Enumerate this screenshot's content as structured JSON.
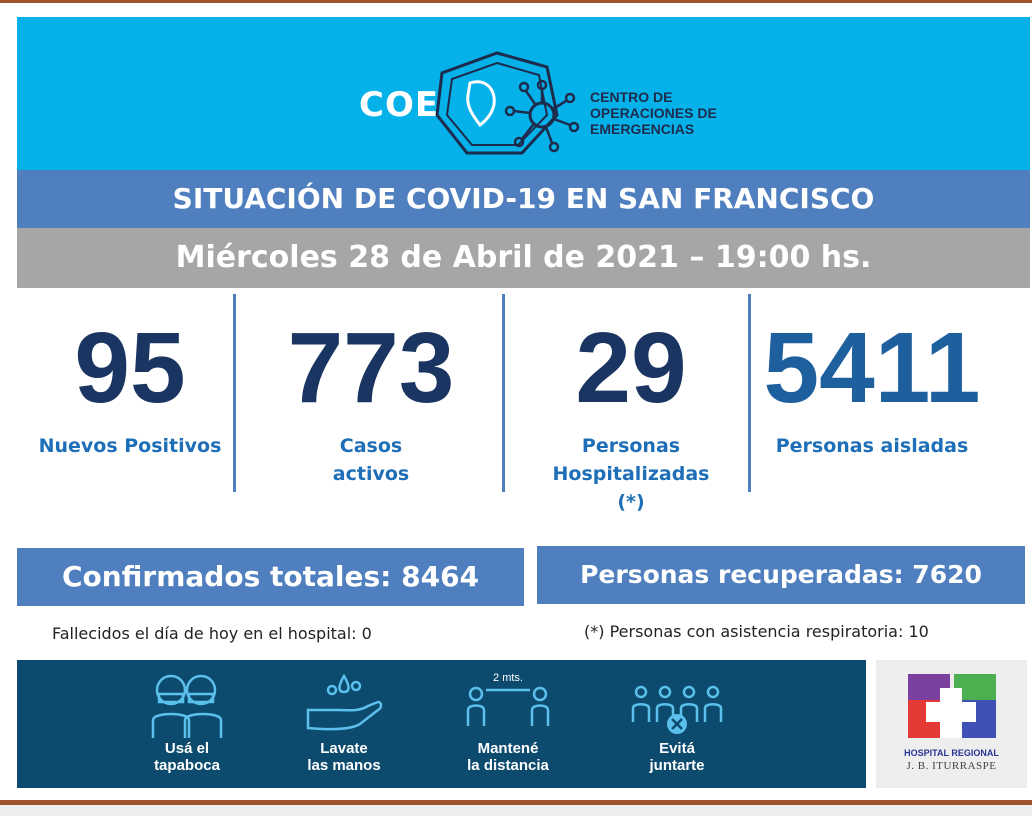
{
  "header": {
    "logo_abbrev": "COE",
    "org_line1": "CENTRO DE",
    "org_line2": "OPERACIONES DE",
    "org_line3": "EMERGENCIAS"
  },
  "title": "SITUACIÓN DE COVID-19 EN SAN FRANCISCO",
  "date": "Miércoles 28 de Abril de 2021 – 19:00 hs.",
  "stats": [
    {
      "value": "95",
      "label_line1": "Nuevos Positivos",
      "label_line2": "",
      "label_line3": ""
    },
    {
      "value": "773",
      "label_line1": "Casos",
      "label_line2": "activos",
      "label_line3": ""
    },
    {
      "value": "29",
      "label_line1": "Personas",
      "label_line2": "Hospitalizadas",
      "label_line3": "(*)"
    },
    {
      "value": "5411",
      "label_line1": "Personas aisladas",
      "label_line2": "",
      "label_line3": ""
    }
  ],
  "totals": {
    "confirmed": "Confirmados totales: 8464",
    "recovered": "Personas recuperadas: 7620"
  },
  "notes": {
    "deaths": "Fallecidos el día de hoy en el hospital:  0",
    "respiratory": "(*) Personas con asistencia respiratoria: 10"
  },
  "banner": {
    "distance_tag": "2 mts.",
    "items": [
      {
        "line1": "Usá el",
        "line2": "tapaboca",
        "icon": "face-mask-icon"
      },
      {
        "line1": "Lavate",
        "line2": "las manos",
        "icon": "hand-wash-icon"
      },
      {
        "line1": "Mantené",
        "line2": "la distancia",
        "icon": "social-distance-icon"
      },
      {
        "line1": "Evitá",
        "line2": "juntarte",
        "icon": "avoid-gathering-icon"
      }
    ]
  },
  "hospital": {
    "name": "HOSPITAL REGIONAL",
    "sub": "J. B. ITURRASPE"
  },
  "colors": {
    "header_bg": "#05b1e9",
    "title_bg": "#4f7fbf",
    "date_bg": "#a6a6a6",
    "stat_number": "#1b3563",
    "stat_label": "#1e6fb8",
    "banner_bg": "#0c4a6e",
    "frame_line": "#a0522d"
  }
}
